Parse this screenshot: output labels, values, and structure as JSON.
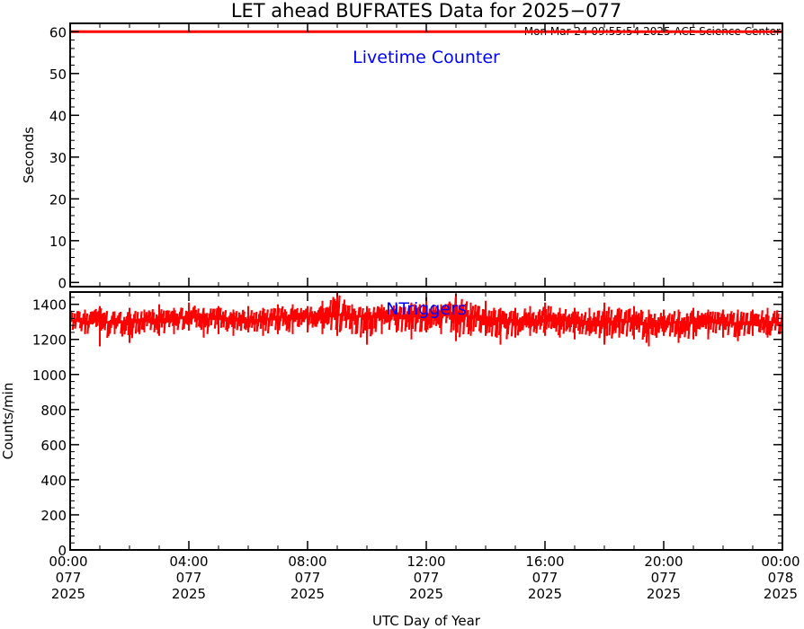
{
  "title": "LET ahead BUFRATES Data for 2025−077",
  "subtitle": "Mon Mar 24 09:55:54 2025 ACE Science Center",
  "xlabel": "UTC Day of Year",
  "colors": {
    "data": "#ff0000",
    "label": "#0000ff",
    "axis": "#000000"
  },
  "x_ticks": [
    {
      "time": "00:00",
      "doy": "077",
      "year": "2025"
    },
    {
      "time": "04:00",
      "doy": "077",
      "year": "2025"
    },
    {
      "time": "08:00",
      "doy": "077",
      "year": "2025"
    },
    {
      "time": "12:00",
      "doy": "077",
      "year": "2025"
    },
    {
      "time": "16:00",
      "doy": "077",
      "year": "2025"
    },
    {
      "time": "20:00",
      "doy": "077",
      "year": "2025"
    },
    {
      "time": "00:00",
      "doy": "078",
      "year": "2025"
    }
  ],
  "chart_data": [
    {
      "type": "line",
      "label": "Livetime Counter",
      "ylabel": "Seconds",
      "ylim": [
        -1,
        62
      ],
      "yticks": [
        "0",
        "10",
        "20",
        "30",
        "40",
        "50",
        "60"
      ],
      "xlim_hours": [
        0,
        24
      ],
      "series": [
        {
          "x_hours": [
            0,
            24
          ],
          "y": [
            60,
            60
          ]
        }
      ]
    },
    {
      "type": "line",
      "label": "NTriggers",
      "ylabel": "Counts/min",
      "ylim": [
        0,
        1470
      ],
      "yticks": [
        "0",
        "200",
        "400",
        "600",
        "800",
        "1000",
        "1200",
        "1400"
      ],
      "xlim_hours": [
        0,
        24
      ],
      "series": [
        {
          "x_hours": [
            0,
            0.5,
            1,
            1.5,
            2,
            2.5,
            3,
            3.5,
            4,
            4.5,
            5,
            5.5,
            6,
            6.5,
            7,
            7.5,
            8,
            8.5,
            9,
            9.5,
            10,
            10.5,
            11,
            11.5,
            12,
            12.5,
            13,
            13.5,
            14,
            14.5,
            15,
            15.5,
            16,
            16.5,
            17,
            17.5,
            18,
            18.5,
            19,
            19.5,
            20,
            20.5,
            21,
            21.5,
            22,
            22.5,
            23,
            23.5,
            24
          ],
          "y": [
            1310,
            1300,
            1305,
            1295,
            1300,
            1310,
            1315,
            1320,
            1330,
            1320,
            1315,
            1310,
            1305,
            1315,
            1325,
            1330,
            1330,
            1335,
            1340,
            1335,
            1330,
            1330,
            1335,
            1335,
            1340,
            1345,
            1340,
            1330,
            1320,
            1315,
            1310,
            1305,
            1305,
            1310,
            1305,
            1300,
            1300,
            1305,
            1300,
            1290,
            1295,
            1295,
            1295,
            1300,
            1295,
            1290,
            1295,
            1300,
            1295
          ],
          "min": [
            1250,
            1230,
            1160,
            1230,
            1180,
            1240,
            1220,
            1230,
            1250,
            1210,
            1230,
            1220,
            1240,
            1220,
            1230,
            1230,
            1240,
            1230,
            1220,
            1230,
            1170,
            1230,
            1240,
            1200,
            1240,
            1230,
            1190,
            1220,
            1220,
            1170,
            1210,
            1220,
            1220,
            1210,
            1200,
            1220,
            1170,
            1210,
            1200,
            1160,
            1220,
            1180,
            1200,
            1200,
            1210,
            1190,
            1220,
            1210,
            1220
          ],
          "max": [
            1370,
            1370,
            1390,
            1360,
            1380,
            1370,
            1400,
            1380,
            1410,
            1380,
            1390,
            1370,
            1390,
            1380,
            1400,
            1400,
            1390,
            1420,
            1470,
            1400,
            1390,
            1400,
            1400,
            1410,
            1440,
            1400,
            1460,
            1410,
            1420,
            1380,
            1380,
            1390,
            1410,
            1380,
            1380,
            1380,
            1410,
            1380,
            1390,
            1370,
            1370,
            1370,
            1380,
            1370,
            1370,
            1370,
            1370,
            1380,
            1370
          ]
        }
      ]
    }
  ]
}
